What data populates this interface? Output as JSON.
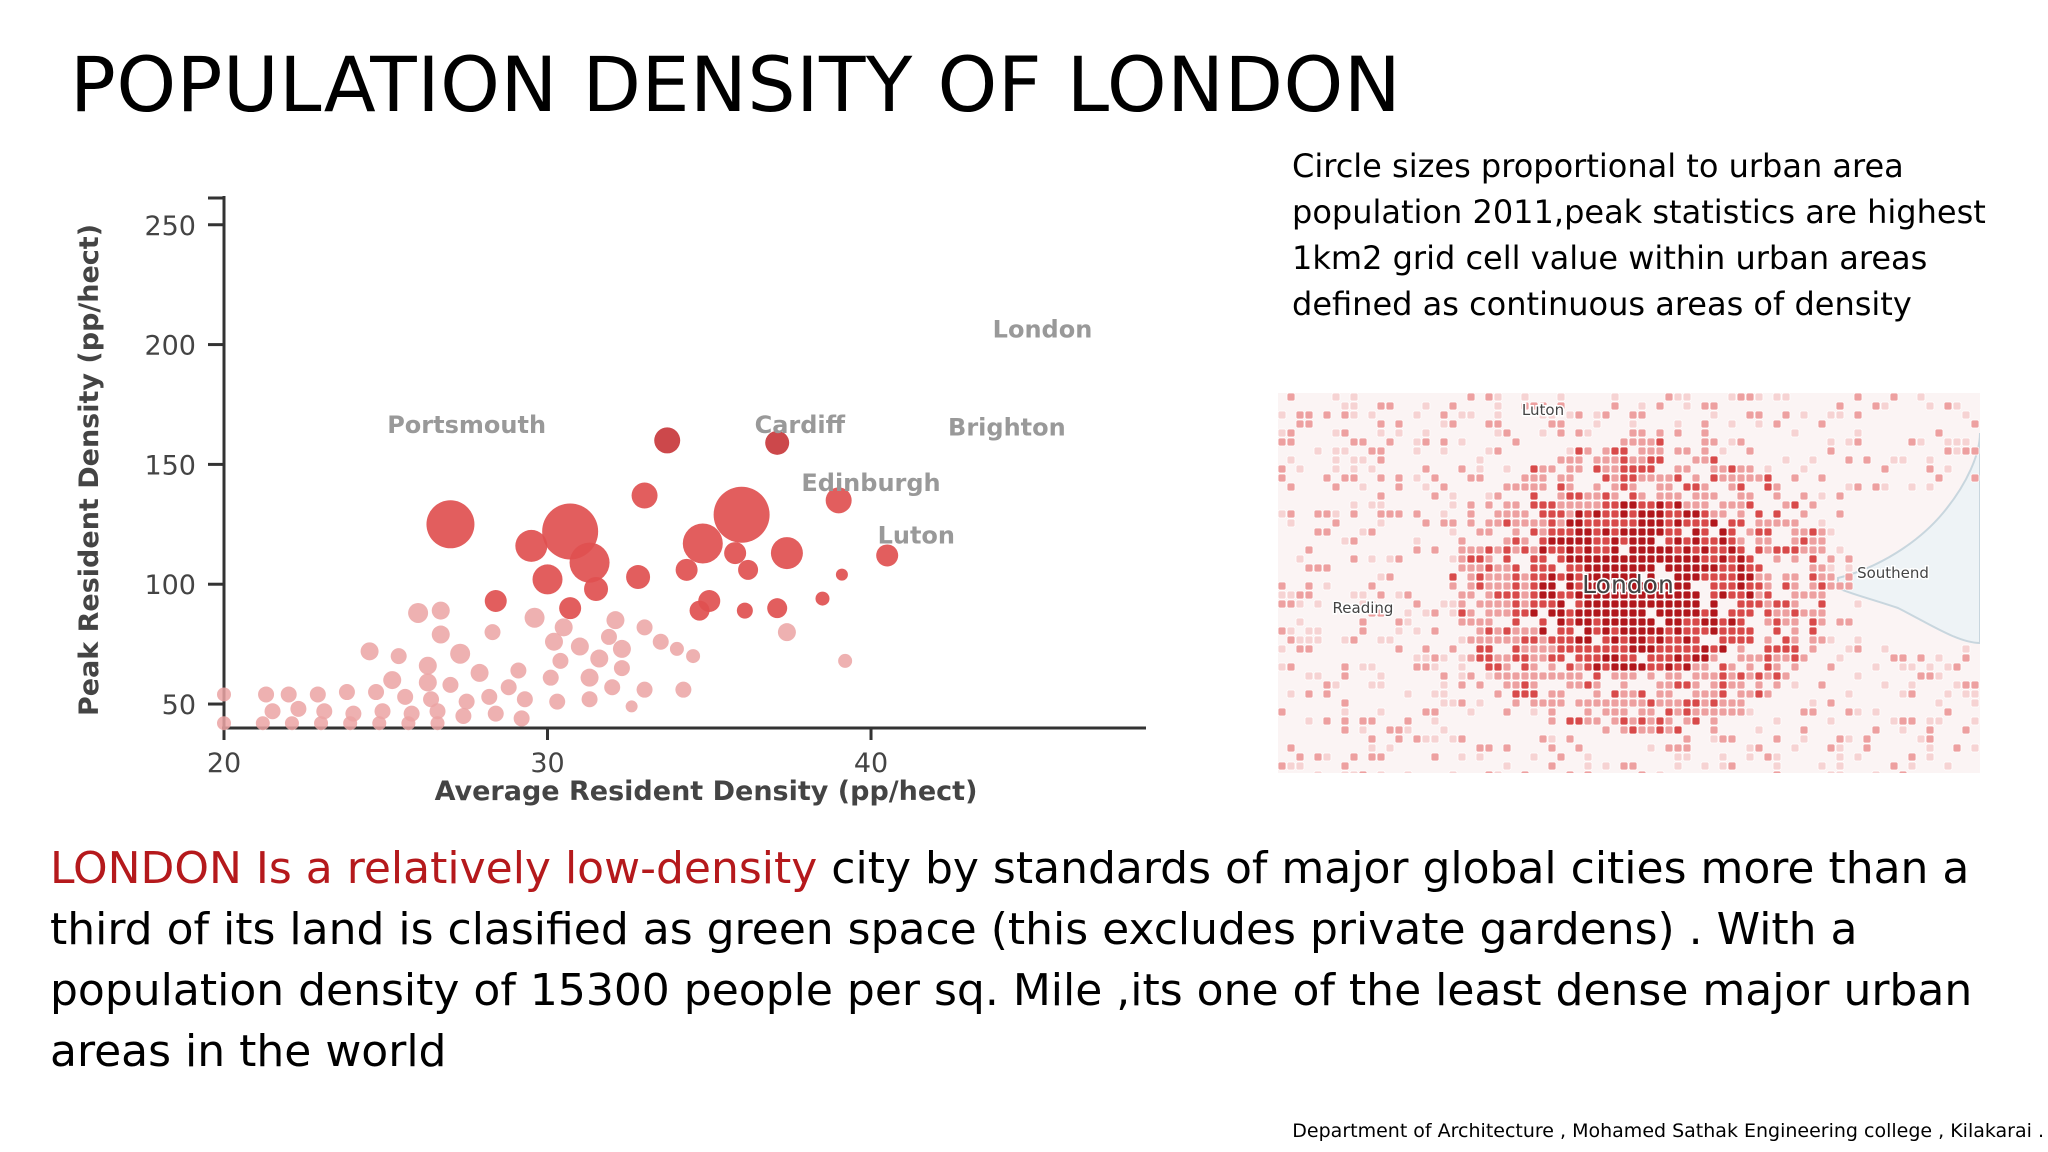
{
  "slide": {
    "title": "POPULATION DENSITY OF LONDON",
    "caption": "Circle sizes proportional to urban area population 2011,peak statistics are highest 1km2 grid cell value within urban areas defined as continuous areas of density",
    "body_highlight": "LONDON Is a relatively low-density",
    "body_rest": " city by standards of major global cities more than a third of its land is clasified as green space (this excludes private gardens) . With a population density of 15300 people per sq. Mile ,its one of the least dense major  urban areas in the world",
    "footer": "Department of Architecture , Mohamed Sathak Engineering college , Kilakarai .",
    "accent_color": "#b5191c"
  },
  "chart_data": {
    "type": "scatter",
    "xlabel": "Average Resident Density (pp/hect)",
    "ylabel": "Peak Resident Density (pp/hect)",
    "xlim": [
      20,
      48.5
    ],
    "ylim": [
      40,
      262
    ],
    "x_ticks": [
      20,
      30,
      40
    ],
    "y_ticks": [
      50,
      100,
      150,
      200,
      250
    ],
    "grid": false,
    "colors": {
      "light": "#eba3a3",
      "mid": "#e05050",
      "dark": "#c8383c",
      "label": "#999999",
      "axis": "#333333"
    },
    "points": [
      {
        "x": 33.7,
        "y": 160,
        "r": 13,
        "c": "dark"
      },
      {
        "x": 37.1,
        "y": 159,
        "r": 12,
        "c": "dark"
      },
      {
        "x": 39.0,
        "y": 135,
        "r": 13,
        "c": "mid"
      },
      {
        "x": 40.5,
        "y": 112,
        "r": 11,
        "c": "mid"
      },
      {
        "x": 33.0,
        "y": 137,
        "r": 13,
        "c": "mid"
      },
      {
        "x": 27.0,
        "y": 125,
        "r": 24,
        "c": "mid"
      },
      {
        "x": 30.7,
        "y": 122,
        "r": 28,
        "c": "mid"
      },
      {
        "x": 29.5,
        "y": 116,
        "r": 16,
        "c": "mid"
      },
      {
        "x": 31.3,
        "y": 109,
        "r": 20,
        "c": "mid"
      },
      {
        "x": 30.0,
        "y": 102,
        "r": 15,
        "c": "mid"
      },
      {
        "x": 36.0,
        "y": 129,
        "r": 28,
        "c": "mid"
      },
      {
        "x": 34.8,
        "y": 117,
        "r": 20,
        "c": "mid"
      },
      {
        "x": 37.4,
        "y": 113,
        "r": 16,
        "c": "mid"
      },
      {
        "x": 35.8,
        "y": 113,
        "r": 11,
        "c": "mid"
      },
      {
        "x": 34.3,
        "y": 106,
        "r": 11,
        "c": "mid"
      },
      {
        "x": 36.2,
        "y": 106,
        "r": 10,
        "c": "mid"
      },
      {
        "x": 39.1,
        "y": 104,
        "r": 6,
        "c": "mid"
      },
      {
        "x": 32.8,
        "y": 103,
        "r": 12,
        "c": "mid"
      },
      {
        "x": 31.5,
        "y": 98,
        "r": 12,
        "c": "mid"
      },
      {
        "x": 35.0,
        "y": 93,
        "r": 11,
        "c": "mid"
      },
      {
        "x": 38.5,
        "y": 94,
        "r": 7,
        "c": "mid"
      },
      {
        "x": 28.4,
        "y": 93,
        "r": 11,
        "c": "mid"
      },
      {
        "x": 30.7,
        "y": 90,
        "r": 11,
        "c": "mid"
      },
      {
        "x": 34.7,
        "y": 89,
        "r": 10,
        "c": "mid"
      },
      {
        "x": 36.1,
        "y": 89,
        "r": 8,
        "c": "mid"
      },
      {
        "x": 37.1,
        "y": 90,
        "r": 10,
        "c": "mid"
      },
      {
        "x": 26.0,
        "y": 88,
        "r": 10,
        "c": "light"
      },
      {
        "x": 26.7,
        "y": 89,
        "r": 9,
        "c": "light"
      },
      {
        "x": 29.6,
        "y": 86,
        "r": 10,
        "c": "light"
      },
      {
        "x": 32.1,
        "y": 85,
        "r": 9,
        "c": "light"
      },
      {
        "x": 30.5,
        "y": 82,
        "r": 9,
        "c": "light"
      },
      {
        "x": 33.0,
        "y": 82,
        "r": 8,
        "c": "light"
      },
      {
        "x": 37.4,
        "y": 80,
        "r": 9,
        "c": "light"
      },
      {
        "x": 28.3,
        "y": 80,
        "r": 8,
        "c": "light"
      },
      {
        "x": 26.7,
        "y": 79,
        "r": 9,
        "c": "light"
      },
      {
        "x": 31.9,
        "y": 78,
        "r": 8,
        "c": "light"
      },
      {
        "x": 30.2,
        "y": 76,
        "r": 9,
        "c": "light"
      },
      {
        "x": 33.5,
        "y": 76,
        "r": 8,
        "c": "light"
      },
      {
        "x": 31.0,
        "y": 74,
        "r": 9,
        "c": "light"
      },
      {
        "x": 32.3,
        "y": 73,
        "r": 9,
        "c": "light"
      },
      {
        "x": 34.0,
        "y": 73,
        "r": 7,
        "c": "light"
      },
      {
        "x": 24.5,
        "y": 72,
        "r": 9,
        "c": "light"
      },
      {
        "x": 25.4,
        "y": 70,
        "r": 8,
        "c": "light"
      },
      {
        "x": 27.3,
        "y": 71,
        "r": 10,
        "c": "light"
      },
      {
        "x": 26.3,
        "y": 66,
        "r": 9,
        "c": "light"
      },
      {
        "x": 34.5,
        "y": 70,
        "r": 7,
        "c": "light"
      },
      {
        "x": 30.4,
        "y": 68,
        "r": 8,
        "c": "light"
      },
      {
        "x": 31.6,
        "y": 69,
        "r": 9,
        "c": "light"
      },
      {
        "x": 32.3,
        "y": 65,
        "r": 8,
        "c": "light"
      },
      {
        "x": 29.1,
        "y": 64,
        "r": 8,
        "c": "light"
      },
      {
        "x": 27.9,
        "y": 63,
        "r": 9,
        "c": "light"
      },
      {
        "x": 30.1,
        "y": 61,
        "r": 8,
        "c": "light"
      },
      {
        "x": 31.3,
        "y": 61,
        "r": 9,
        "c": "light"
      },
      {
        "x": 25.2,
        "y": 60,
        "r": 9,
        "c": "light"
      },
      {
        "x": 26.3,
        "y": 59,
        "r": 9,
        "c": "light"
      },
      {
        "x": 27.0,
        "y": 58,
        "r": 8,
        "c": "light"
      },
      {
        "x": 28.8,
        "y": 57,
        "r": 8,
        "c": "light"
      },
      {
        "x": 32.0,
        "y": 57,
        "r": 8,
        "c": "light"
      },
      {
        "x": 33.0,
        "y": 56,
        "r": 8,
        "c": "light"
      },
      {
        "x": 34.2,
        "y": 56,
        "r": 8,
        "c": "light"
      },
      {
        "x": 39.2,
        "y": 68,
        "r": 7,
        "c": "light"
      },
      {
        "x": 21.3,
        "y": 54,
        "r": 8,
        "c": "light"
      },
      {
        "x": 22.0,
        "y": 54,
        "r": 8,
        "c": "light"
      },
      {
        "x": 22.9,
        "y": 54,
        "r": 8,
        "c": "light"
      },
      {
        "x": 23.8,
        "y": 55,
        "r": 8,
        "c": "light"
      },
      {
        "x": 24.7,
        "y": 55,
        "r": 8,
        "c": "light"
      },
      {
        "x": 25.6,
        "y": 53,
        "r": 8,
        "c": "light"
      },
      {
        "x": 26.4,
        "y": 52,
        "r": 8,
        "c": "light"
      },
      {
        "x": 27.5,
        "y": 51,
        "r": 8,
        "c": "light"
      },
      {
        "x": 28.2,
        "y": 53,
        "r": 8,
        "c": "light"
      },
      {
        "x": 29.3,
        "y": 52,
        "r": 8,
        "c": "light"
      },
      {
        "x": 30.3,
        "y": 51,
        "r": 8,
        "c": "light"
      },
      {
        "x": 31.3,
        "y": 52,
        "r": 8,
        "c": "light"
      },
      {
        "x": 32.6,
        "y": 49,
        "r": 6,
        "c": "light"
      },
      {
        "x": 20.0,
        "y": 54,
        "r": 7,
        "c": "light"
      },
      {
        "x": 21.5,
        "y": 47,
        "r": 8,
        "c": "light"
      },
      {
        "x": 22.3,
        "y": 48,
        "r": 8,
        "c": "light"
      },
      {
        "x": 23.1,
        "y": 47,
        "r": 8,
        "c": "light"
      },
      {
        "x": 24.0,
        "y": 46,
        "r": 8,
        "c": "light"
      },
      {
        "x": 24.9,
        "y": 47,
        "r": 8,
        "c": "light"
      },
      {
        "x": 25.8,
        "y": 46,
        "r": 8,
        "c": "light"
      },
      {
        "x": 26.6,
        "y": 47,
        "r": 8,
        "c": "light"
      },
      {
        "x": 27.4,
        "y": 45,
        "r": 8,
        "c": "light"
      },
      {
        "x": 28.4,
        "y": 46,
        "r": 8,
        "c": "light"
      },
      {
        "x": 29.2,
        "y": 44,
        "r": 8,
        "c": "light"
      },
      {
        "x": 20.0,
        "y": 42,
        "r": 7,
        "c": "light"
      },
      {
        "x": 21.2,
        "y": 42,
        "r": 7,
        "c": "light"
      },
      {
        "x": 22.1,
        "y": 42,
        "r": 7,
        "c": "light"
      },
      {
        "x": 23.0,
        "y": 42,
        "r": 7,
        "c": "light"
      },
      {
        "x": 23.9,
        "y": 42,
        "r": 7,
        "c": "light"
      },
      {
        "x": 24.8,
        "y": 42,
        "r": 7,
        "c": "light"
      },
      {
        "x": 25.7,
        "y": 42,
        "r": 7,
        "c": "light"
      },
      {
        "x": 26.6,
        "y": 42,
        "r": 7,
        "c": "light"
      }
    ],
    "annotations": [
      {
        "text": "London",
        "x": 45.3,
        "y": 203
      },
      {
        "text": "Portsmouth",
        "x": 27.5,
        "y": 163
      },
      {
        "text": "Cardiff",
        "x": 37.8,
        "y": 163
      },
      {
        "text": "Brighton",
        "x": 44.2,
        "y": 162
      },
      {
        "text": "Edinburgh",
        "x": 40.0,
        "y": 139
      },
      {
        "text": "Luton",
        "x": 41.4,
        "y": 117
      }
    ]
  },
  "map": {
    "labels": [
      {
        "text": "Luton",
        "key": "luton"
      },
      {
        "text": "London",
        "key": "london"
      },
      {
        "text": "Reading",
        "key": "reading"
      },
      {
        "text": "Southend",
        "key": "southend"
      }
    ],
    "colors": {
      "core": "#b1171c",
      "inner": "#d84a4a",
      "outer": "#eda0a0",
      "fringe": "#f6d3d3",
      "water": "#eef3f6"
    }
  }
}
